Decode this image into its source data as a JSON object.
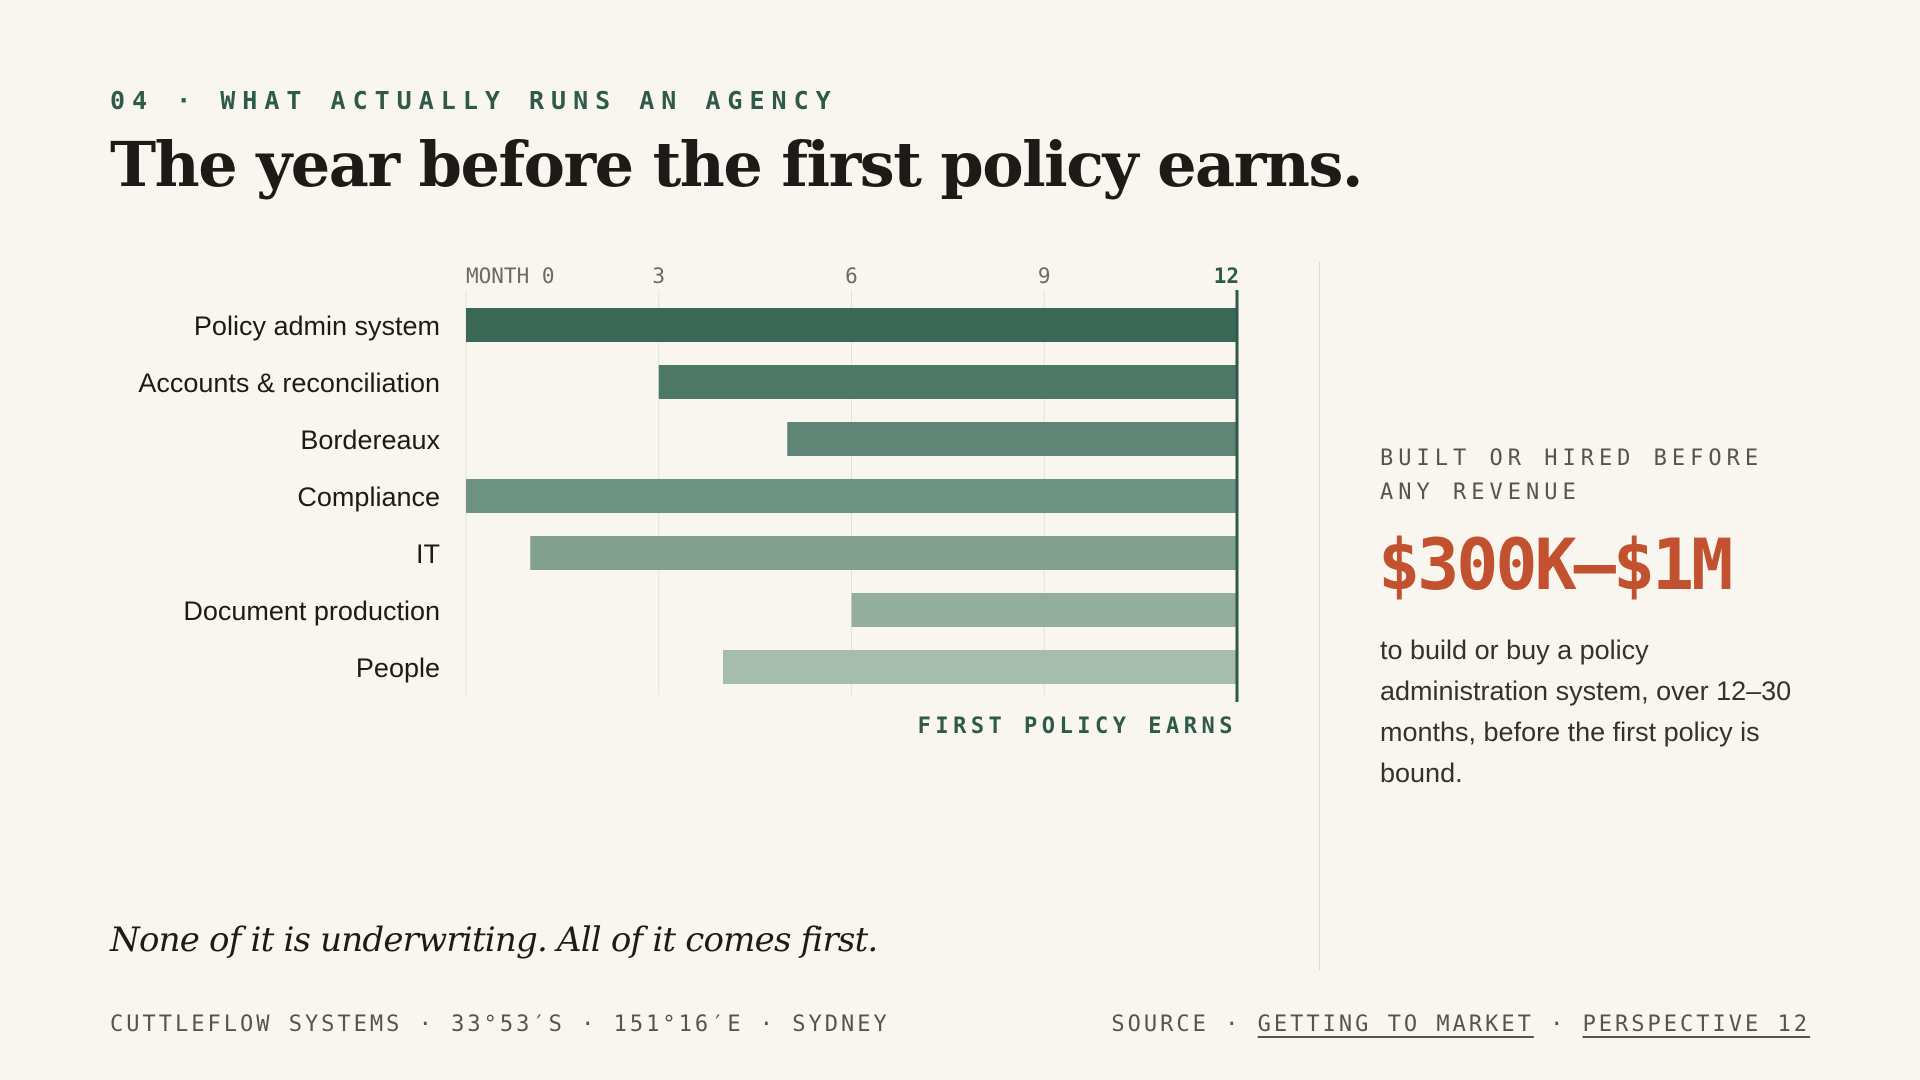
{
  "header": {
    "eyebrow": "04 · WHAT ACTUALLY RUNS AN AGENCY",
    "title": "The year before the first policy earns."
  },
  "chart_data": {
    "type": "bar",
    "orientation": "horizontal-range",
    "x_ticks": [
      "MONTH 0",
      "3",
      "6",
      "9",
      "12"
    ],
    "xlim": [
      0,
      12
    ],
    "grid": true,
    "marker": {
      "x": 12,
      "label": "FIRST POLICY EARNS"
    },
    "categories": [
      "Policy admin system",
      "Accounts & reconciliation",
      "Bordereaux",
      "Compliance",
      "IT",
      "Document production",
      "People"
    ],
    "start_month": [
      0,
      3,
      5,
      0,
      1,
      6,
      4
    ],
    "end_month": [
      12,
      12,
      12,
      12,
      12,
      12,
      12
    ],
    "colors": [
      "#3b6757",
      "#4d7766",
      "#5e8575",
      "#6f9382",
      "#81a090",
      "#93ae9f",
      "#a5bcae"
    ]
  },
  "stat": {
    "caption": "BUILT OR HIRED BEFORE ANY REVENUE",
    "value": "$300K–$1M",
    "description": "to build or buy a policy administration system, over 12–30 months, before the first policy is bound."
  },
  "tagline": "None of it is underwriting. All of it comes first.",
  "footer": {
    "left": "CUTTLEFLOW SYSTEMS · 33°53′S · 151°16′E · SYDNEY",
    "source_prefix": "SOURCE ·",
    "source_link_1": "GETTING TO MARKET",
    "separator": "·",
    "source_link_2": "PERSPECTIVE 12"
  }
}
